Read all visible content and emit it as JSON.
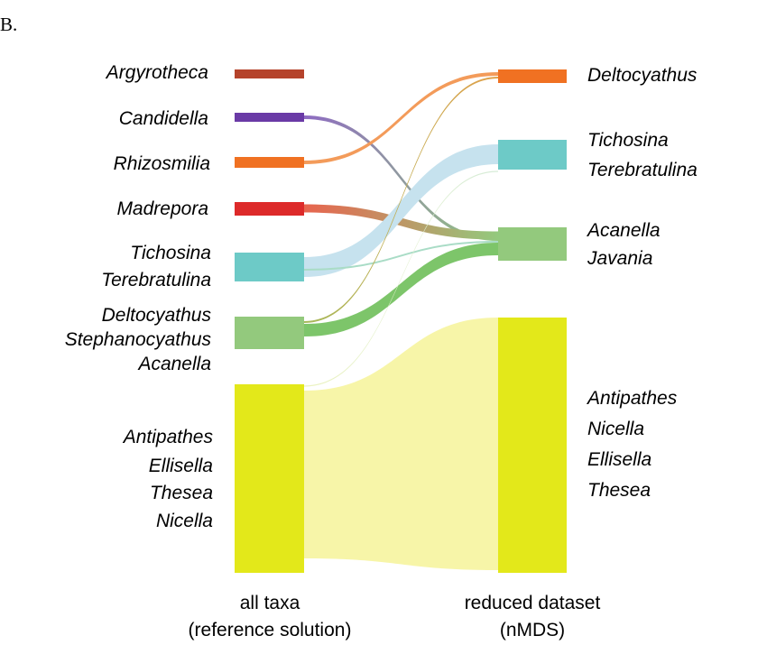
{
  "panel_label": "B.",
  "left_groups": [
    {
      "id": "L1",
      "labels": [
        "Argyrotheca"
      ],
      "color": "#b5432b"
    },
    {
      "id": "L2",
      "labels": [
        "Candidella"
      ],
      "color": "#6a3aa6"
    },
    {
      "id": "L3",
      "labels": [
        "Rhizosmilia"
      ],
      "color": "#f07122"
    },
    {
      "id": "L4",
      "labels": [
        "Madrepora"
      ],
      "color": "#dd2a2a"
    },
    {
      "id": "L5",
      "labels": [
        "Tichosina",
        "Terebratulina"
      ],
      "color": "#6dcac7"
    },
    {
      "id": "L6",
      "labels": [
        "Deltocyathus",
        "Stephanocyathus",
        "Acanella"
      ],
      "color": "#93c97d"
    },
    {
      "id": "L7",
      "labels": [
        "Antipathes",
        "Ellisella",
        "Thesea",
        "Nicella"
      ],
      "color": "#e3e81a"
    }
  ],
  "right_groups": [
    {
      "id": "R1",
      "labels": [
        "Deltocyathus"
      ],
      "color": "#f07122"
    },
    {
      "id": "R2",
      "labels": [
        "Tichosina",
        "Terebratulina"
      ],
      "color": "#6dcac7"
    },
    {
      "id": "R3",
      "labels": [
        "Acanella",
        "Javania"
      ],
      "color": "#93c97d"
    },
    {
      "id": "R4",
      "labels": [
        "Antipathes",
        "Nicella",
        "Ellisella",
        "Thesea"
      ],
      "color": "#e3e81a"
    }
  ],
  "flows": [
    {
      "from": "L2",
      "to": "R3",
      "color_from": "#8e6bc2",
      "color_to": "#93c97d"
    },
    {
      "from": "L3",
      "to": "R1",
      "color_from": "#f39b5a",
      "color_to": "#f39b5a"
    },
    {
      "from": "L4",
      "to": "R3",
      "color_from": "#e8644e",
      "color_to": "#93c97d"
    },
    {
      "from": "L5",
      "to": "R2",
      "color_from": "#c6e2ee",
      "color_to": "#c6e2ee"
    },
    {
      "from": "L5",
      "to": "R3",
      "color_from": "#a9dcc6",
      "color_to": "#a9dcc6"
    },
    {
      "from": "L6",
      "to": "R1",
      "color_from": "#a6b95a",
      "color_to": "#e0a04a"
    },
    {
      "from": "L6",
      "to": "R3",
      "color_from": "#7dc56a",
      "color_to": "#7dc56a"
    },
    {
      "from": "L7",
      "to": "R2",
      "color_from": "#ecf3c0",
      "color_to": "#d6ecd8"
    },
    {
      "from": "L7",
      "to": "R4",
      "color_from": "#f7f5a8",
      "color_to": "#f7f5a8"
    }
  ],
  "captions": {
    "left": [
      "all taxa",
      "(reference solution)"
    ],
    "right": [
      "reduced dataset",
      "(nMDS)"
    ]
  }
}
